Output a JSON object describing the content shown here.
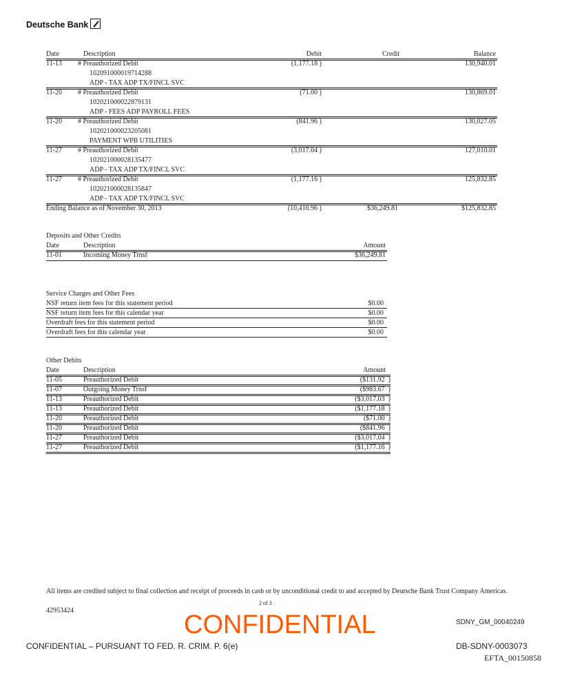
{
  "header": {
    "brand": "Deutsche Bank",
    "logo_icon": "deutsche-bank-slash-box"
  },
  "activity": {
    "columns": [
      "Date",
      "Description",
      "Debit",
      "Credit",
      "Balance"
    ],
    "entries": [
      {
        "date": "11-13",
        "lines": [
          "# Preauthorized Debit",
          "102091000019714288",
          "ADP - TAX ADP TX/FINCL SVC"
        ],
        "debit": "(1,177.18 )",
        "balance": "130,940.01"
      },
      {
        "date": "11-20",
        "lines": [
          "# Preauthorized Debit",
          "102021000022879131",
          "ADP - FEES ADP PAYROLL FEES"
        ],
        "debit": "(71.00 )",
        "balance": "130,869.01"
      },
      {
        "date": "11-20",
        "lines": [
          "# Preauthorized Debit",
          "102021000023205081",
          "PAYMENT WPB UTILITIES"
        ],
        "debit": "(841.96 )",
        "balance": "130,027.05"
      },
      {
        "date": "11-27",
        "lines": [
          "# Preauthorized Debit",
          "102021000028135477",
          "ADP - TAX ADP TX/FINCL SVC"
        ],
        "debit": "(3,017.04 )",
        "balance": "127,010.01"
      },
      {
        "date": "11-27",
        "lines": [
          "# Preauthorized Debit",
          "102021000028135847",
          "ADP - TAX ADP TX/FINCL SVC"
        ],
        "debit": "(1,177.16 )",
        "balance": "125,832.85"
      }
    ],
    "ending": {
      "label": "Ending Balance as of November 30, 2013",
      "debit": "(10,416.96 )",
      "credit": "$36,249.81",
      "balance": "$125,832.85"
    }
  },
  "deposits": {
    "title": "Deposits and Other Credits",
    "columns": [
      "Date",
      "Description",
      "Amount"
    ],
    "rows": [
      {
        "date": "11-01",
        "description": "Incoming Money Trnsf",
        "amount": "$36,249.81"
      }
    ]
  },
  "fees": {
    "title": "Service Charges and Other Fees",
    "rows": [
      {
        "label": "NSF return item fees for this statement period",
        "amount": "$0.00"
      },
      {
        "label": "NSF return item fees for this calendar year",
        "amount": "$0.00"
      },
      {
        "label": "Overdraft fees for this statement period",
        "amount": "$0.00"
      },
      {
        "label": "Overdraft fees for this calendar year",
        "amount": "$0.00"
      }
    ]
  },
  "other_debits": {
    "title": "Other Debits",
    "columns": [
      "Date",
      "Description",
      "Amount"
    ],
    "rows": [
      {
        "date": "11-05",
        "description": "Preauthorized Debit",
        "amount": "($131.92  )"
      },
      {
        "date": "11-07",
        "description": "Outgoing Money Trnsf",
        "amount": "($983.67  )"
      },
      {
        "date": "11-13",
        "description": "Preauthorized Debit",
        "amount": "($3,017.03  )"
      },
      {
        "date": "11-13",
        "description": "Preauthorized Debit",
        "amount": "($1,177.18  )"
      },
      {
        "date": "11-20",
        "description": "Preauthorized Debit",
        "amount": "($71.00  )"
      },
      {
        "date": "11-20",
        "description": "Preauthorized Debit",
        "amount": "($841.96  )"
      },
      {
        "date": "11-27",
        "description": "Preauthorized Debit",
        "amount": "($3,017.04  )"
      },
      {
        "date": "11-27",
        "description": "Preauthorized Debit",
        "amount": "($1,177.16  )"
      }
    ]
  },
  "footer": {
    "disclaimer": "All items are credited subject to final collection and receipt of proceeds in cash or by unconditional credit to and accepted by Deutsche Bank Trust Company Americas.",
    "account_ref": "42953424",
    "page": "2 of 3",
    "stamp": "CONFIDENTIAL",
    "stamp_color": "#ff5a00",
    "bates_sdny": "SDNY_GM_00040249",
    "confidential_notice": "CONFIDENTIAL – PURSUANT TO FED. R. CRIM. P. 6(e)",
    "bates_db": "DB-SDNY-0003073",
    "efta": "EFTA_00150858"
  }
}
